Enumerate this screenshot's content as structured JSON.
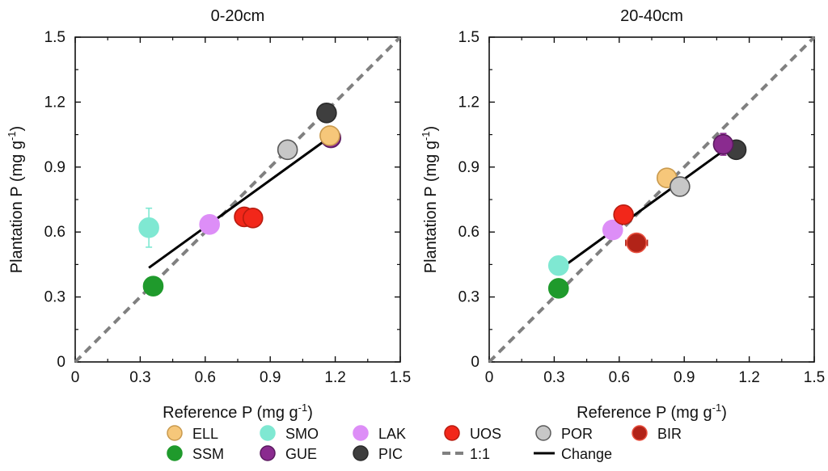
{
  "chart_data": [
    {
      "type": "scatter",
      "title": "0-20cm",
      "xlabel": "Reference P (mg g",
      "ylabel": "Plantation P (mg g",
      "unit_superscript": "-1",
      "unit_close": ")",
      "xlim": [
        0,
        1.5
      ],
      "ylim": [
        0,
        1.5
      ],
      "ticks": [
        0,
        0.3,
        0.6,
        0.9,
        1.2,
        1.5
      ],
      "tick_labels": [
        "0",
        "0.3",
        "0.6",
        "0.9",
        "1.2",
        "1.5"
      ],
      "points": [
        {
          "site": "SMO",
          "x": 0.34,
          "y": 0.62,
          "yerr": 0.09
        },
        {
          "site": "SSM",
          "x": 0.36,
          "y": 0.35
        },
        {
          "site": "LAK",
          "x": 0.62,
          "y": 0.635
        },
        {
          "site": "UOS",
          "x": 0.78,
          "y": 0.67
        },
        {
          "site": "UOS",
          "x": 0.82,
          "y": 0.665
        },
        {
          "site": "POR",
          "x": 0.98,
          "y": 0.98
        },
        {
          "site": "GUE",
          "x": 1.18,
          "y": 1.035
        },
        {
          "site": "ELL",
          "x": 1.175,
          "y": 1.045
        },
        {
          "site": "PIC",
          "x": 1.16,
          "y": 1.15
        }
      ],
      "fit_line": {
        "x": [
          0.34,
          1.17
        ],
        "y": [
          0.435,
          1.035
        ]
      },
      "identity_line": {
        "x": [
          0,
          1.5
        ],
        "y": [
          0,
          1.5
        ]
      }
    },
    {
      "type": "scatter",
      "title": "20-40cm",
      "xlabel": "Reference P (mg g",
      "ylabel": "Plantation P (mg g",
      "unit_superscript": "-1",
      "unit_close": ")",
      "xlim": [
        0,
        1.5
      ],
      "ylim": [
        0,
        1.5
      ],
      "ticks": [
        0,
        0.3,
        0.6,
        0.9,
        1.2,
        1.5
      ],
      "tick_labels": [
        "0",
        "0.3",
        "0.6",
        "0.9",
        "1.2",
        "1.5"
      ],
      "points": [
        {
          "site": "SMO",
          "x": 0.32,
          "y": 0.445
        },
        {
          "site": "SSM",
          "x": 0.32,
          "y": 0.34
        },
        {
          "site": "LAK",
          "x": 0.57,
          "y": 0.61
        },
        {
          "site": "UOS",
          "x": 0.62,
          "y": 0.68
        },
        {
          "site": "BIR",
          "x": 0.68,
          "y": 0.55,
          "xerr": 0.05
        },
        {
          "site": "ELL",
          "x": 0.82,
          "y": 0.85
        },
        {
          "site": "POR",
          "x": 0.88,
          "y": 0.81
        },
        {
          "site": "PIC",
          "x": 1.14,
          "y": 0.98
        },
        {
          "site": "GUE",
          "x": 1.08,
          "y": 1.005,
          "yerr": 0.05
        }
      ],
      "fit_line": {
        "x": [
          0.3,
          1.08
        ],
        "y": [
          0.41,
          0.975
        ]
      },
      "identity_line": {
        "x": [
          0,
          1.5
        ],
        "y": [
          0,
          1.5
        ]
      }
    }
  ],
  "colors": {
    "ELL": {
      "fill": "#f6c77a",
      "stroke": "#c99a4e"
    },
    "SMO": {
      "fill": "#7fe8d2",
      "stroke": "#7fe8d2"
    },
    "LAK": {
      "fill": "#dd8ef7",
      "stroke": "#dd8ef7"
    },
    "UOS": {
      "fill": "#f2271a",
      "stroke": "#b81c10"
    },
    "POR": {
      "fill": "#c7c7c7",
      "stroke": "#5a5a5a"
    },
    "BIR": {
      "fill": "#b22318",
      "stroke": "#e8503f"
    },
    "SSM": {
      "fill": "#1f9a2c",
      "stroke": "#1f9a2c"
    },
    "GUE": {
      "fill": "#8a2b8f",
      "stroke": "#5b1a60"
    },
    "PIC": {
      "fill": "#3e3e3e",
      "stroke": "#2a2a2a"
    },
    "identity": "#808080",
    "fit": "#000000"
  },
  "legend": {
    "row1": [
      {
        "key": "ELL",
        "label": "ELL",
        "kind": "marker"
      },
      {
        "key": "SMO",
        "label": "SMO",
        "kind": "marker"
      },
      {
        "key": "LAK",
        "label": "LAK",
        "kind": "marker"
      },
      {
        "key": "UOS",
        "label": "UOS",
        "kind": "marker"
      },
      {
        "key": "POR",
        "label": "POR",
        "kind": "marker"
      },
      {
        "key": "BIR",
        "label": "BIR",
        "kind": "marker"
      }
    ],
    "row2": [
      {
        "key": "SSM",
        "label": "SSM",
        "kind": "marker"
      },
      {
        "key": "GUE",
        "label": "GUE",
        "kind": "marker"
      },
      {
        "key": "PIC",
        "label": "PIC",
        "kind": "marker"
      },
      {
        "key": "identity",
        "label": "1:1",
        "kind": "dashed"
      },
      {
        "key": "fit",
        "label": "Change",
        "kind": "line"
      }
    ]
  }
}
